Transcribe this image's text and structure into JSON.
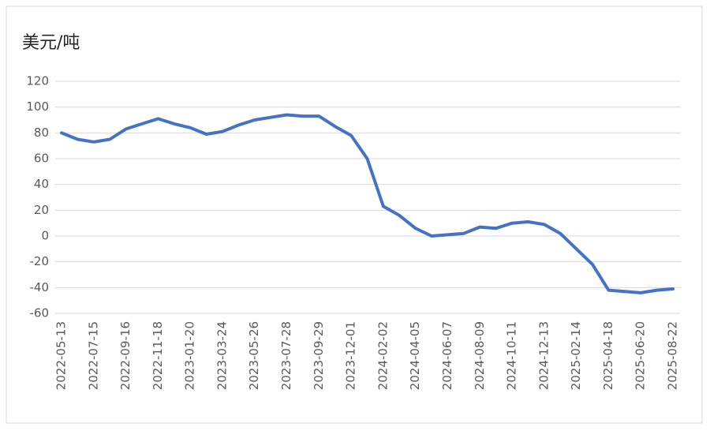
{
  "chart_data": {
    "type": "line",
    "title": "美元/吨",
    "categories": [
      "2022-05-13",
      null,
      "2022-07-15",
      null,
      "2022-09-16",
      null,
      "2022-11-18",
      null,
      "2023-01-20",
      null,
      "2023-03-24",
      null,
      "2023-05-26",
      null,
      "2023-07-28",
      null,
      "2023-09-29",
      null,
      "2023-12-01",
      null,
      "2024-02-02",
      null,
      "2024-04-05",
      null,
      "2024-06-07",
      null,
      "2024-08-09",
      null,
      "2024-10-11",
      null,
      "2024-12-13",
      null,
      "2025-02-14",
      null,
      "2025-04-18",
      null,
      "2025-06-20",
      null,
      "2025-08-22"
    ],
    "series": [
      {
        "name": "美元/吨",
        "color": "#4472c4",
        "values": [
          80,
          75,
          73,
          75,
          83,
          87,
          91,
          87,
          84,
          79,
          81,
          86,
          90,
          92,
          94,
          93,
          93,
          85,
          78,
          60,
          23,
          16,
          6,
          0,
          1,
          2,
          7,
          6,
          10,
          11,
          9,
          2,
          -10,
          -22,
          -42,
          -43,
          -44,
          -42,
          -41
        ]
      }
    ],
    "ylim": [
      -60,
      120
    ],
    "yticks": [
      -60,
      -40,
      -20,
      0,
      20,
      40,
      60,
      80,
      100,
      120
    ],
    "grid": true
  }
}
